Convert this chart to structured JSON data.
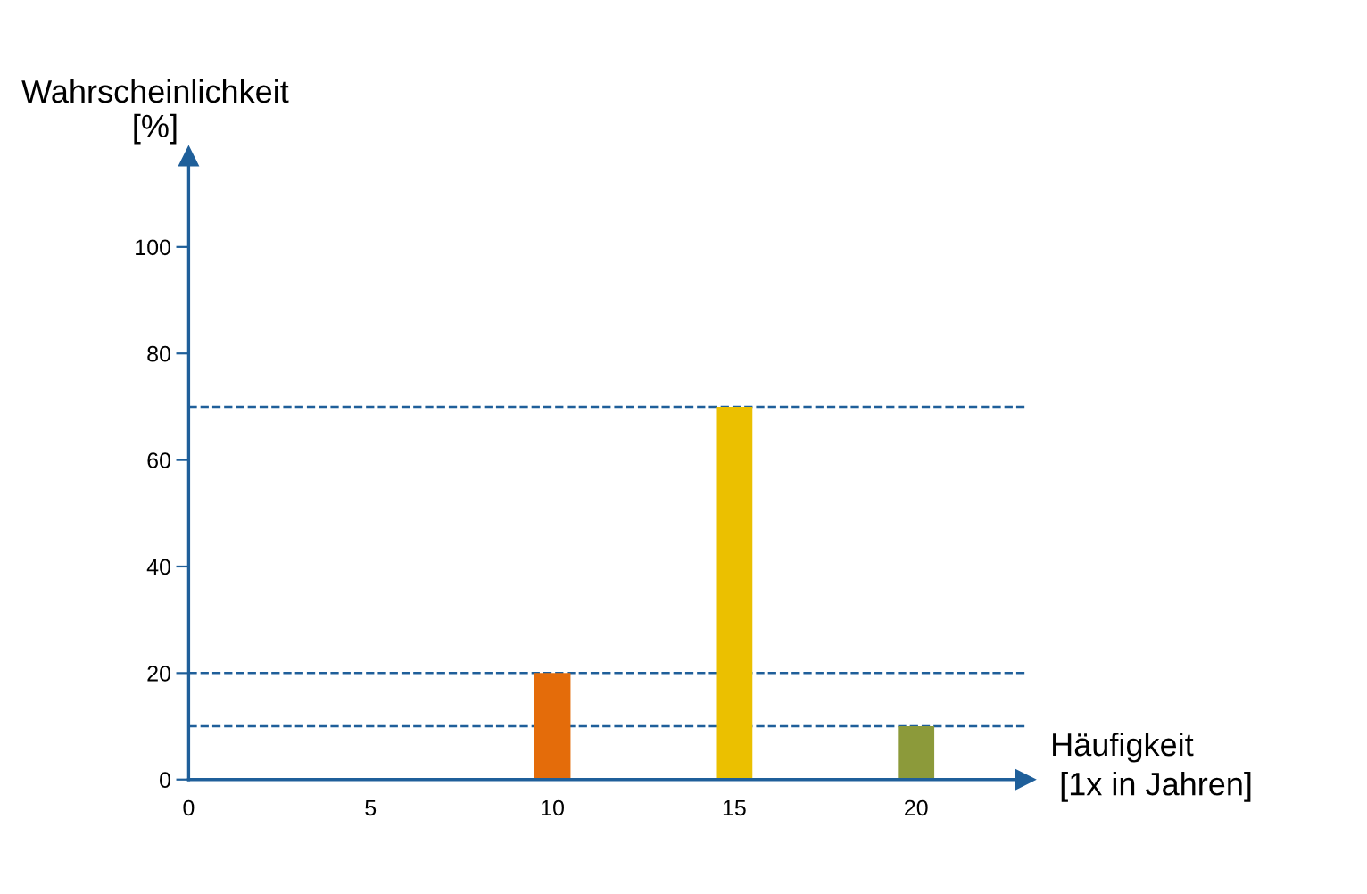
{
  "chart_data": {
    "type": "bar",
    "ylabel": "Wahrscheinlichkeit\n[%]",
    "xlabel": "Häufigkeit\n [1x in Jahren]",
    "categories": [
      "0",
      "5",
      "10",
      "15",
      "20"
    ],
    "values": [
      null,
      null,
      20,
      70,
      10
    ],
    "colors": [
      "#e46c0a",
      "#e46c0a",
      "#e46c0a",
      "#ebc000",
      "#8c9a3a"
    ],
    "ylim": [
      0,
      117
    ],
    "yticks": [
      0,
      20,
      40,
      60,
      80,
      100
    ],
    "ref_lines": [
      {
        "axis": "y",
        "value": 70,
        "color": "#1f5f9a",
        "line_style": "dashed"
      },
      {
        "axis": "y",
        "value": 20,
        "color": "#1f5f9a",
        "line_style": "dashed"
      },
      {
        "axis": "y",
        "value": 10,
        "color": "#1f5f9a",
        "line_style": "dashed"
      }
    ],
    "grid": false,
    "legend": false
  }
}
